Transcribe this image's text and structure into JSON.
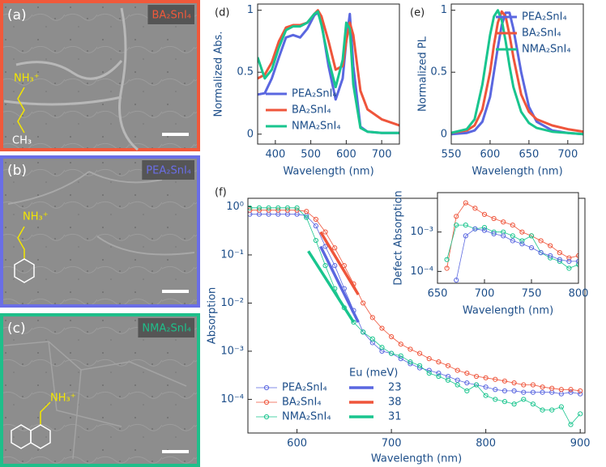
{
  "panels": [
    {
      "label": "(a)",
      "title": "BA₂SnI₄",
      "amine": "NH₃⁺",
      "end_group": "CH₃",
      "color": "#f0593b"
    },
    {
      "label": "(b)",
      "title": "PEA₂SnI₄",
      "amine": "NH₃⁺",
      "color": "#6a6ee6"
    },
    {
      "label": "(c)",
      "title": "NMA₂SnI₄",
      "amine": "NH₃⁺",
      "color": "#1fbf8a"
    }
  ],
  "chart_data": [
    {
      "type": "line",
      "label": "(d)",
      "xlabel": "Wavelength (nm)",
      "ylabel": "Normalized Abs.",
      "xlim": [
        350,
        750
      ],
      "xticks": [
        400,
        500,
        600,
        700
      ],
      "ylim": [
        -0.08,
        1.05
      ],
      "yticks": [
        0,
        0.5,
        1
      ],
      "legend": "lower left",
      "x": [
        350,
        370,
        390,
        410,
        430,
        450,
        470,
        490,
        510,
        520,
        530,
        550,
        570,
        590,
        600,
        610,
        620,
        640,
        660,
        700,
        750
      ],
      "series": [
        {
          "name": "PEA₂SnI₄",
          "color": "#5a67e0",
          "values": [
            0.32,
            0.33,
            0.45,
            0.62,
            0.78,
            0.8,
            0.78,
            0.85,
            0.96,
            0.98,
            0.9,
            0.55,
            0.28,
            0.45,
            0.75,
            0.97,
            0.55,
            0.06,
            0.02,
            0.01,
            0.01
          ]
        },
        {
          "name": "BA₂SnI₄",
          "color": "#ef553b",
          "values": [
            0.45,
            0.48,
            0.58,
            0.75,
            0.86,
            0.88,
            0.88,
            0.9,
            0.97,
            1.0,
            0.95,
            0.75,
            0.52,
            0.55,
            0.75,
            0.9,
            0.8,
            0.35,
            0.2,
            0.12,
            0.07
          ]
        },
        {
          "name": "NMA₂SnI₄",
          "color": "#19c58e",
          "values": [
            0.62,
            0.45,
            0.52,
            0.7,
            0.84,
            0.87,
            0.87,
            0.9,
            0.97,
            0.99,
            0.88,
            0.6,
            0.38,
            0.6,
            0.9,
            0.85,
            0.4,
            0.05,
            0.02,
            0.01,
            0.01
          ]
        }
      ]
    },
    {
      "type": "line",
      "label": "(e)",
      "xlabel": "Wavelength (nm)",
      "ylabel": "Normalized PL",
      "xlim": [
        550,
        720
      ],
      "xticks": [
        550,
        600,
        650,
        700
      ],
      "ylim": [
        -0.08,
        1.05
      ],
      "yticks": [
        0,
        0.5,
        1
      ],
      "legend": "upper right",
      "x": [
        550,
        570,
        580,
        590,
        600,
        605,
        610,
        615,
        620,
        625,
        630,
        640,
        650,
        660,
        680,
        700,
        720
      ],
      "series": [
        {
          "name": "PEA₂SnI₄",
          "color": "#5a67e0",
          "values": [
            0,
            0.01,
            0.03,
            0.1,
            0.3,
            0.5,
            0.7,
            0.88,
            0.98,
            0.98,
            0.85,
            0.5,
            0.22,
            0.1,
            0.03,
            0.01,
            0
          ]
        },
        {
          "name": "BA₂SnI₄",
          "color": "#ef553b",
          "values": [
            0.01,
            0.03,
            0.07,
            0.2,
            0.5,
            0.72,
            0.9,
            0.99,
            0.95,
            0.8,
            0.62,
            0.32,
            0.18,
            0.12,
            0.07,
            0.04,
            0.02
          ]
        },
        {
          "name": "NMA₂SnI₄",
          "color": "#19c58e",
          "values": [
            0.01,
            0.04,
            0.12,
            0.4,
            0.8,
            0.95,
            1.0,
            0.92,
            0.75,
            0.55,
            0.38,
            0.18,
            0.09,
            0.05,
            0.02,
            0.01,
            0
          ]
        }
      ]
    },
    {
      "type": "line",
      "markers": true,
      "log_y": true,
      "label": "(f)",
      "xlabel": "Wavelength (nm)",
      "ylabel": "Absorption",
      "xlim": [
        548,
        905
      ],
      "xticks": [
        600,
        700,
        800,
        900
      ],
      "ylim": [
        2e-05,
        1.5
      ],
      "yticks": [
        {
          "value": 1,
          "label": "10⁰"
        },
        {
          "value": 0.1,
          "label": "10⁻¹"
        },
        {
          "value": 0.01,
          "label": "10⁻²"
        },
        {
          "value": 0.001,
          "label": "10⁻³"
        },
        {
          "value": 0.0001,
          "label": "10⁻⁴"
        }
      ],
      "legend": "lower left",
      "x": [
        550,
        560,
        570,
        580,
        590,
        600,
        610,
        620,
        630,
        640,
        650,
        660,
        670,
        680,
        690,
        700,
        710,
        720,
        730,
        740,
        750,
        760,
        770,
        780,
        790,
        800,
        810,
        820,
        830,
        840,
        850,
        860,
        870,
        880,
        890,
        900
      ],
      "series": [
        {
          "name": "PEA₂SnI₄",
          "color": "#5a67e0",
          "values": [
            0.7,
            0.7,
            0.7,
            0.7,
            0.7,
            0.7,
            0.65,
            0.4,
            0.15,
            0.06,
            0.02,
            0.007,
            0.0025,
            0.0015,
            0.001,
            0.0009,
            0.0007,
            0.00055,
            0.00045,
            0.0004,
            0.00035,
            0.0003,
            0.00025,
            0.00022,
            0.0002,
            0.00018,
            0.00016,
            0.00015,
            0.00015,
            0.00014,
            0.00014,
            0.00014,
            0.00014,
            0.00013,
            0.00014,
            0.00013
          ]
        },
        {
          "name": "BA₂SnI₄",
          "color": "#ef553b",
          "values": [
            0.85,
            0.85,
            0.85,
            0.85,
            0.85,
            0.85,
            0.8,
            0.55,
            0.3,
            0.14,
            0.06,
            0.025,
            0.01,
            0.005,
            0.003,
            0.002,
            0.0014,
            0.0011,
            0.0009,
            0.0007,
            0.0006,
            0.0005,
            0.0004,
            0.00035,
            0.0003,
            0.00028,
            0.00026,
            0.00024,
            0.00022,
            0.0002,
            0.0002,
            0.00018,
            0.00017,
            0.00016,
            0.00016,
            0.00015
          ]
        },
        {
          "name": "NMA₂SnI₄",
          "color": "#19c58e",
          "values": [
            0.95,
            0.95,
            0.95,
            0.95,
            0.95,
            0.95,
            0.6,
            0.2,
            0.06,
            0.02,
            0.008,
            0.004,
            0.0025,
            0.0018,
            0.0012,
            0.0009,
            0.0008,
            0.0006,
            0.0005,
            0.00035,
            0.0003,
            0.00025,
            0.0002,
            0.00015,
            0.0002,
            0.00012,
            0.0001,
            9e-05,
            8e-05,
            0.0001,
            8e-05,
            6e-05,
            6e-05,
            7e-05,
            3e-05,
            5e-05
          ]
        }
      ],
      "fits_title": "Eu (meV)",
      "fits": [
        {
          "name": "23",
          "color": "#5a67e0",
          "x": [
            625,
            665
          ],
          "values": [
            0.15,
            0.004
          ]
        },
        {
          "name": "38",
          "color": "#ef553b",
          "x": [
            625,
            665
          ],
          "values": [
            0.3,
            0.015
          ]
        },
        {
          "name": "31",
          "color": "#19c58e",
          "x": [
            612,
            660
          ],
          "values": [
            0.12,
            0.004
          ]
        }
      ]
    },
    {
      "type": "line",
      "markers": true,
      "log_y": true,
      "xlabel": "Wavelength (nm)",
      "ylabel": "Defect Absorption",
      "xlim": [
        650,
        800
      ],
      "xticks": [
        650,
        700,
        750,
        800
      ],
      "ylim": [
        5e-05,
        0.01
      ],
      "yticks": [
        {
          "value": 0.001,
          "label": "10⁻³"
        },
        {
          "value": 0.0001,
          "label": "10⁻⁴"
        }
      ],
      "x": [
        660,
        670,
        680,
        690,
        700,
        710,
        720,
        730,
        740,
        750,
        760,
        770,
        780,
        790,
        800
      ],
      "series": [
        {
          "color": "#ef553b",
          "values": [
            0.00012,
            0.0025,
            0.0055,
            0.004,
            0.0028,
            0.0022,
            0.0018,
            0.0015,
            0.001,
            0.0008,
            0.0006,
            0.00045,
            0.0003,
            0.00022,
            0.00025
          ]
        },
        {
          "color": "#19c58e",
          "values": [
            0.0002,
            0.0015,
            0.0015,
            0.0012,
            0.0013,
            0.001,
            0.001,
            0.0008,
            0.0006,
            0.0008,
            0.0003,
            0.00022,
            0.00018,
            0.00012,
            0.00015
          ]
        },
        {
          "color": "#5a67e0",
          "values": [
            null,
            6e-05,
            0.0008,
            0.0012,
            0.0011,
            0.0009,
            0.0008,
            0.0006,
            0.0005,
            0.0004,
            0.0003,
            0.00025,
            0.0002,
            0.00018,
            0.00018
          ]
        }
      ]
    }
  ]
}
